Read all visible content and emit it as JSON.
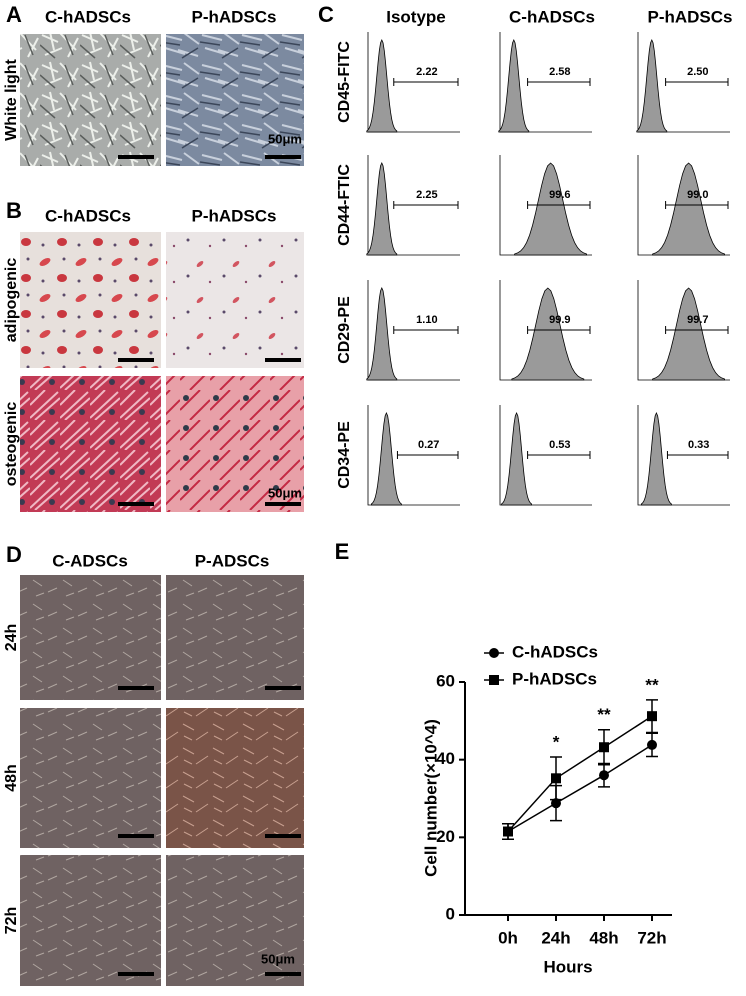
{
  "panels": {
    "A": {
      "letter": "A",
      "columns": [
        "C-hADSCs",
        "P-hADSCs"
      ],
      "rows": [
        "White light"
      ],
      "scale_bar": "50μm"
    },
    "B": {
      "letter": "B",
      "columns": [
        "C-hADSCs",
        "P-hADSCs"
      ],
      "rows": [
        "adipogenic",
        "osteogenic"
      ],
      "scale_bar": "50μm"
    },
    "C": {
      "letter": "C",
      "columns": [
        "Isotype",
        "C-hADSCs",
        "P-hADSCs"
      ],
      "rows": [
        {
          "label": "CD45-FITC",
          "values": [
            "2.22",
            "2.58",
            "2.50"
          ]
        },
        {
          "label": "CD44-FTIC",
          "values": [
            "2.25",
            "99.6",
            "99.0"
          ]
        },
        {
          "label": "CD29-PE",
          "values": [
            "1.10",
            "99.9",
            "99.7"
          ]
        },
        {
          "label": "CD34-PE",
          "values": [
            "0.27",
            "0.53",
            "0.33"
          ]
        }
      ]
    },
    "D": {
      "letter": "D",
      "columns": [
        "C-ADSCs",
        "P-ADSCs"
      ],
      "rows": [
        "24h",
        "48h",
        "72h"
      ],
      "scale_bar": "50μm"
    },
    "E": {
      "letter": "E"
    }
  },
  "chart_data": {
    "type": "line",
    "xlabel": "Hours",
    "ylabel": "Cell number(×10^4)",
    "categories": [
      "0h",
      "24h",
      "48h",
      "72h"
    ],
    "series": [
      {
        "name": "C-hADSCs",
        "color": "#000000",
        "marker": "circle",
        "values": [
          21.5,
          28.8,
          36.0,
          43.8
        ],
        "errors": [
          2.0,
          4.5,
          3.0,
          3.0
        ]
      },
      {
        "name": "P-hADSCs",
        "color": "#000000",
        "marker": "square",
        "values": [
          21.5,
          35.2,
          43.2,
          51.2
        ],
        "errors": [
          2.0,
          5.5,
          4.5,
          4.2
        ]
      }
    ],
    "ylim": [
      0,
      60
    ],
    "yticks": [
      0,
      20,
      40,
      60
    ],
    "annotations": [
      {
        "text": "*",
        "x": "24h"
      },
      {
        "text": "**",
        "x": "48h"
      },
      {
        "text": "**",
        "x": "72h"
      }
    ],
    "legend": "upper left"
  }
}
